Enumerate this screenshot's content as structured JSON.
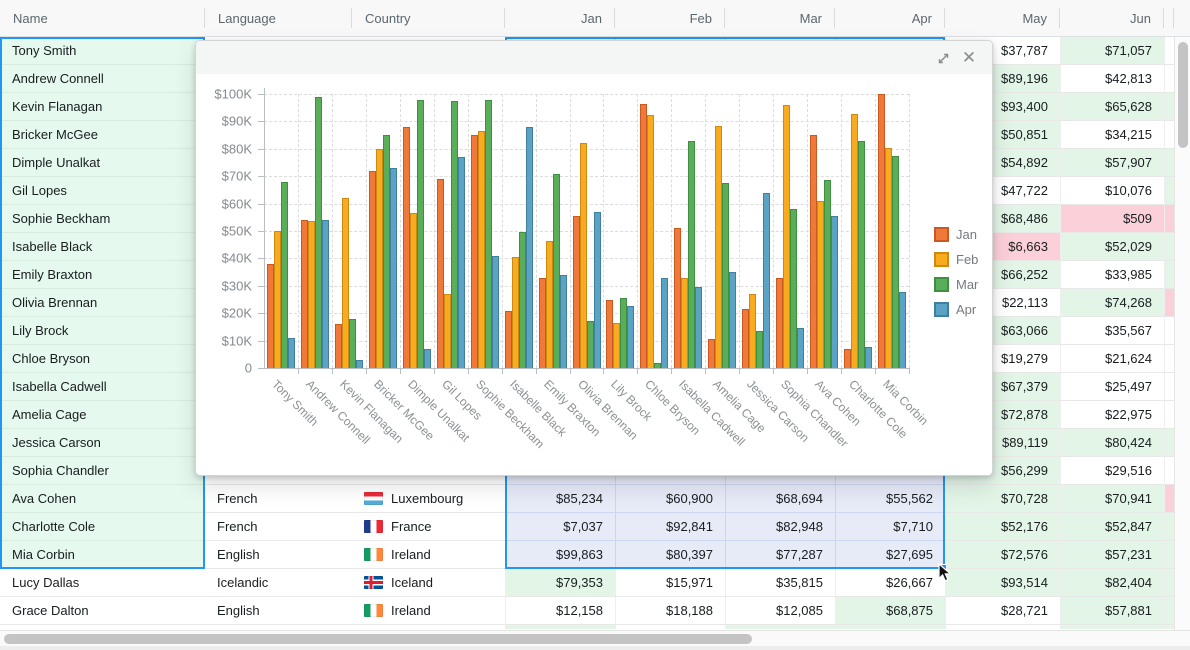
{
  "table": {
    "headers": [
      "Name",
      "Language",
      "Country",
      "Jan",
      "Feb",
      "Mar",
      "Apr",
      "May",
      "Jun"
    ],
    "rows": [
      {
        "name": "Tony Smith",
        "language": null,
        "country": null,
        "flag": null,
        "jan": null,
        "feb": null,
        "mar": null,
        "apr": null,
        "may": "$37,787",
        "jun": "$71,057",
        "may_bg": "w",
        "jun_bg": "g",
        "sliver": "w",
        "selected": true
      },
      {
        "name": "Andrew Connell",
        "language": null,
        "country": null,
        "flag": null,
        "jan": null,
        "feb": null,
        "mar": null,
        "apr": null,
        "may": "$89,196",
        "jun": "$42,813",
        "may_bg": "g",
        "jun_bg": "w",
        "sliver": "w",
        "selected": true
      },
      {
        "name": "Kevin Flanagan",
        "language": null,
        "country": null,
        "flag": null,
        "jan": null,
        "feb": null,
        "mar": null,
        "apr": null,
        "may": "$93,400",
        "jun": "$65,628",
        "may_bg": "g",
        "jun_bg": "g",
        "sliver": "g",
        "selected": true
      },
      {
        "name": "Bricker McGee",
        "language": null,
        "country": null,
        "flag": null,
        "jan": null,
        "feb": null,
        "mar": null,
        "apr": null,
        "may": "$50,851",
        "jun": "$34,215",
        "may_bg": "g",
        "jun_bg": "w",
        "sliver": "w",
        "selected": true
      },
      {
        "name": "Dimple Unalkat",
        "language": null,
        "country": null,
        "flag": null,
        "jan": null,
        "feb": null,
        "mar": null,
        "apr": null,
        "may": "$54,892",
        "jun": "$57,907",
        "may_bg": "g",
        "jun_bg": "g",
        "sliver": "g",
        "selected": true
      },
      {
        "name": "Gil Lopes",
        "language": null,
        "country": null,
        "flag": null,
        "jan": null,
        "feb": null,
        "mar": null,
        "apr": null,
        "may": "$47,722",
        "jun": "$10,076",
        "may_bg": "w",
        "jun_bg": "w",
        "sliver": "g",
        "selected": true
      },
      {
        "name": "Sophie Beckham",
        "language": null,
        "country": null,
        "flag": null,
        "jan": null,
        "feb": null,
        "mar": null,
        "apr": null,
        "may": "$68,486",
        "jun": "$509",
        "may_bg": "g",
        "jun_bg": "p",
        "sliver": "p",
        "selected": true
      },
      {
        "name": "Isabelle Black",
        "language": null,
        "country": null,
        "flag": null,
        "jan": null,
        "feb": null,
        "mar": null,
        "apr": null,
        "may": "$6,663",
        "jun": "$52,029",
        "may_bg": "p",
        "jun_bg": "g",
        "sliver": "g",
        "selected": true
      },
      {
        "name": "Emily Braxton",
        "language": null,
        "country": null,
        "flag": null,
        "jan": null,
        "feb": null,
        "mar": null,
        "apr": null,
        "may": "$66,252",
        "jun": "$33,985",
        "may_bg": "g",
        "jun_bg": "w",
        "sliver": "g",
        "selected": true
      },
      {
        "name": "Olivia Brennan",
        "language": null,
        "country": null,
        "flag": null,
        "jan": null,
        "feb": null,
        "mar": null,
        "apr": null,
        "may": "$22,113",
        "jun": "$74,268",
        "may_bg": "w",
        "jun_bg": "g",
        "sliver": "p",
        "selected": true
      },
      {
        "name": "Lily Brock",
        "language": null,
        "country": null,
        "flag": null,
        "jan": null,
        "feb": null,
        "mar": null,
        "apr": null,
        "may": "$63,066",
        "jun": "$35,567",
        "may_bg": "g",
        "jun_bg": "w",
        "sliver": "w",
        "selected": true
      },
      {
        "name": "Chloe Bryson",
        "language": null,
        "country": null,
        "flag": null,
        "jan": null,
        "feb": null,
        "mar": null,
        "apr": null,
        "may": "$19,279",
        "jun": "$21,624",
        "may_bg": "w",
        "jun_bg": "w",
        "sliver": "w",
        "selected": true
      },
      {
        "name": "Isabella Cadwell",
        "language": null,
        "country": null,
        "flag": null,
        "jan": null,
        "feb": null,
        "mar": null,
        "apr": null,
        "may": "$67,379",
        "jun": "$25,497",
        "may_bg": "g",
        "jun_bg": "w",
        "sliver": "w",
        "selected": true
      },
      {
        "name": "Amelia Cage",
        "language": null,
        "country": null,
        "flag": null,
        "jan": null,
        "feb": null,
        "mar": null,
        "apr": null,
        "may": "$72,878",
        "jun": "$22,975",
        "may_bg": "g",
        "jun_bg": "w",
        "sliver": "w",
        "selected": true
      },
      {
        "name": "Jessica Carson",
        "language": null,
        "country": null,
        "flag": null,
        "jan": null,
        "feb": null,
        "mar": null,
        "apr": null,
        "may": "$89,119",
        "jun": "$80,424",
        "may_bg": "g",
        "jun_bg": "g",
        "sliver": "g",
        "selected": true
      },
      {
        "name": "Sophia Chandler",
        "language": null,
        "country": null,
        "flag": null,
        "jan": null,
        "feb": null,
        "mar": null,
        "apr": null,
        "may": "$56,299",
        "jun": "$29,516",
        "may_bg": "g",
        "jun_bg": "w",
        "sliver": "w",
        "selected": true
      },
      {
        "name": "Ava Cohen",
        "language": "French",
        "country": "Luxembourg",
        "flag": "lu",
        "jan": "$85,234",
        "feb": "$60,900",
        "mar": "$68,694",
        "apr": "$55,562",
        "may": "$70,728",
        "jun": "$70,941",
        "may_bg": "g",
        "jun_bg": "g",
        "sliver": "p",
        "selected": true
      },
      {
        "name": "Charlotte Cole",
        "language": "French",
        "country": "France",
        "flag": "fr",
        "jan": "$7,037",
        "feb": "$92,841",
        "mar": "$82,948",
        "apr": "$7,710",
        "may": "$52,176",
        "jun": "$52,847",
        "may_bg": "g",
        "jun_bg": "g",
        "sliver": "g",
        "selected": true
      },
      {
        "name": "Mia Corbin",
        "language": "English",
        "country": "Ireland",
        "flag": "ie",
        "jan": "$99,863",
        "feb": "$80,397",
        "mar": "$77,287",
        "apr": "$27,695",
        "may": "$72,576",
        "jun": "$57,231",
        "may_bg": "g",
        "jun_bg": "g",
        "sliver": "g",
        "selected": true
      },
      {
        "name": "Lucy Dallas",
        "language": "Icelandic",
        "country": "Iceland",
        "flag": "is",
        "jan": "$79,353",
        "feb": "$15,971",
        "mar": "$35,815",
        "apr": "$26,667",
        "may": "$93,514",
        "jun": "$82,404",
        "jan_bg": "g",
        "feb_bg": "w",
        "mar_bg": "w",
        "apr_bg": "w",
        "may_bg": "g",
        "jun_bg": "g",
        "sliver": "g",
        "selected": false
      },
      {
        "name": "Grace Dalton",
        "language": "English",
        "country": "Ireland",
        "flag": "ie",
        "jan": "$12,158",
        "feb": "$18,188",
        "mar": "$12,085",
        "apr": "$68,875",
        "jan_bg": "w",
        "feb_bg": "w",
        "mar_bg": "w",
        "apr_bg": "g",
        "may": "$28,721",
        "jun": "$57,881",
        "may_bg": "w",
        "jun_bg": "g",
        "sliver": "g",
        "selected": false
      }
    ],
    "partial_row_bgs": {
      "jan": "g",
      "feb": "w",
      "mar": "g",
      "apr": "g",
      "may": "w",
      "jun": "g",
      "sliver": "g"
    }
  },
  "colors": {
    "accent_selection": "#2196f3",
    "cell_green": "#e2f5e7",
    "cell_pink": "#fcd0d9",
    "selected_value_cell": "#e7ebf8",
    "selected_category_cell": "#e5f9ee"
  },
  "popup": {
    "expand_icon": "expand-icon",
    "close_icon": "close-icon"
  },
  "chart_data": {
    "type": "bar",
    "title": "",
    "categories": [
      "Tony Smith",
      "Andrew Connell",
      "Kevin Flanagan",
      "Bricker McGee",
      "Dimple Unalkat",
      "Gil Lopes",
      "Sophie Beckham",
      "Isabelle Black",
      "Emily Braxton",
      "Olivia Brennan",
      "Lily Brock",
      "Chloe Bryson",
      "Isabella Cadwell",
      "Amelia Cage",
      "Jessica Carson",
      "Sophia Chandler",
      "Ava Cohen",
      "Charlotte Cole",
      "Mia Corbin"
    ],
    "series": [
      {
        "name": "Jan",
        "fill": "#f0793a",
        "stroke": "#c85a21",
        "values": [
          38000,
          54000,
          16000,
          72000,
          88000,
          69000,
          85000,
          21000,
          33000,
          55500,
          25000,
          96500,
          51000,
          10500,
          21500,
          33000,
          85234,
          7037,
          99863
        ]
      },
      {
        "name": "Feb",
        "fill": "#f9ab20",
        "stroke": "#cd8a12",
        "values": [
          50000,
          53500,
          62000,
          80000,
          56500,
          27000,
          86500,
          40500,
          46500,
          82000,
          16500,
          92500,
          33000,
          88500,
          27000,
          96000,
          60900,
          92841,
          80397
        ]
      },
      {
        "name": "Mar",
        "fill": "#5aae5a",
        "stroke": "#3e8f3f",
        "values": [
          68000,
          99000,
          18000,
          85000,
          98000,
          97500,
          98000,
          49500,
          71000,
          17000,
          25500,
          2000,
          83000,
          67500,
          13500,
          58000,
          68694,
          82948,
          77287
        ]
      },
      {
        "name": "Apr",
        "fill": "#5ba3c4",
        "stroke": "#40809e",
        "values": [
          11000,
          54000,
          3000,
          73000,
          7000,
          77000,
          41000,
          88000,
          34000,
          57000,
          22500,
          33000,
          29500,
          35000,
          64000,
          14500,
          55562,
          7710,
          27695
        ]
      }
    ],
    "ylim": [
      0,
      100000
    ],
    "ytick_step": 10000,
    "ytick_labels": [
      "0",
      "$10K",
      "$20K",
      "$30K",
      "$40K",
      "$50K",
      "$60K",
      "$70K",
      "$80K",
      "$90K",
      "$100K"
    ],
    "xlabel": "",
    "ylabel": "",
    "grid": true,
    "legend_position": "right"
  }
}
